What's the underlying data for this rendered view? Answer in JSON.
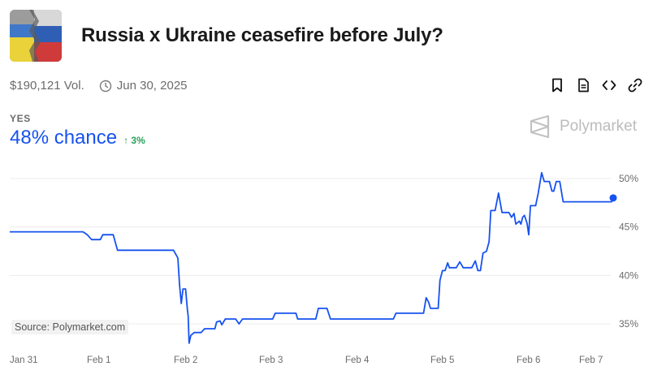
{
  "header": {
    "title": "Russia x Ukraine ceasefire before July?",
    "thumbnail_icon": "russia-ukraine-flag-image"
  },
  "meta": {
    "volume": "$190,121 Vol.",
    "end_date": "Jun 30, 2025"
  },
  "toolbar": {
    "icons": [
      "bookmark-icon",
      "document-icon",
      "embed-code-icon",
      "link-icon"
    ]
  },
  "outcome": {
    "label": "YES",
    "chance": "48% chance",
    "delta": "↑ 3%",
    "accent": "#1652f0",
    "delta_color": "#27a05a"
  },
  "brand": {
    "name": "Polymarket"
  },
  "source": "Source: Polymarket.com",
  "chart_data": {
    "type": "line",
    "x_ticks": [
      "Jan 31",
      "Feb 1",
      "Feb 2",
      "Feb 3",
      "Feb 4",
      "Feb 5",
      "Feb 6",
      "Feb 7"
    ],
    "y_ticks": [
      "50%",
      "45%",
      "40%",
      "35%"
    ],
    "y_tick_values": [
      50,
      45,
      40,
      35
    ],
    "ylim": [
      33,
      51
    ],
    "xlim": [
      0,
      7
    ],
    "grid": true,
    "line_color": "#1652f0",
    "series": [
      {
        "values": [
          [
            0.0,
            44.5
          ],
          [
            0.85,
            44.5
          ],
          [
            0.9,
            44.2
          ],
          [
            0.95,
            43.7
          ],
          [
            1.05,
            43.7
          ],
          [
            1.08,
            44.2
          ],
          [
            1.2,
            44.2
          ],
          [
            1.25,
            42.6
          ],
          [
            1.9,
            42.6
          ],
          [
            1.95,
            41.8
          ],
          [
            1.97,
            39.0
          ],
          [
            1.99,
            37.1
          ],
          [
            2.01,
            38.6
          ],
          [
            2.04,
            38.6
          ],
          [
            2.06,
            36.5
          ],
          [
            2.07,
            35.8
          ],
          [
            2.08,
            33.0
          ],
          [
            2.1,
            33.8
          ],
          [
            2.14,
            34.1
          ],
          [
            2.22,
            34.1
          ],
          [
            2.26,
            34.5
          ],
          [
            2.38,
            34.5
          ],
          [
            2.4,
            35.2
          ],
          [
            2.44,
            35.3
          ],
          [
            2.46,
            34.9
          ],
          [
            2.5,
            35.5
          ],
          [
            2.62,
            35.5
          ],
          [
            2.66,
            35.0
          ],
          [
            2.7,
            35.5
          ],
          [
            3.05,
            35.5
          ],
          [
            3.08,
            36.1
          ],
          [
            3.32,
            36.1
          ],
          [
            3.34,
            35.5
          ],
          [
            3.55,
            35.5
          ],
          [
            3.58,
            36.6
          ],
          [
            3.68,
            36.6
          ],
          [
            3.72,
            35.5
          ],
          [
            4.45,
            35.5
          ],
          [
            4.48,
            36.1
          ],
          [
            4.8,
            36.1
          ],
          [
            4.83,
            37.7
          ],
          [
            4.86,
            37.2
          ],
          [
            4.88,
            36.6
          ],
          [
            4.97,
            36.6
          ],
          [
            4.99,
            39.5
          ],
          [
            5.02,
            40.5
          ],
          [
            5.05,
            40.5
          ],
          [
            5.08,
            41.3
          ],
          [
            5.1,
            40.8
          ],
          [
            5.18,
            40.8
          ],
          [
            5.22,
            41.4
          ],
          [
            5.26,
            40.8
          ],
          [
            5.36,
            40.8
          ],
          [
            5.4,
            41.5
          ],
          [
            5.43,
            40.5
          ],
          [
            5.46,
            40.5
          ],
          [
            5.49,
            42.3
          ],
          [
            5.53,
            42.5
          ],
          [
            5.56,
            43.5
          ],
          [
            5.58,
            46.7
          ],
          [
            5.63,
            46.7
          ],
          [
            5.67,
            48.5
          ],
          [
            5.71,
            46.5
          ],
          [
            5.79,
            46.5
          ],
          [
            5.82,
            46.0
          ],
          [
            5.85,
            46.4
          ],
          [
            5.87,
            45.3
          ],
          [
            5.91,
            45.6
          ],
          [
            5.93,
            45.3
          ],
          [
            5.95,
            46.0
          ],
          [
            5.97,
            46.2
          ],
          [
            6.0,
            45.4
          ],
          [
            6.02,
            44.2
          ],
          [
            6.04,
            47.2
          ],
          [
            6.1,
            47.2
          ],
          [
            6.13,
            48.5
          ],
          [
            6.17,
            50.6
          ],
          [
            6.2,
            49.7
          ],
          [
            6.26,
            49.7
          ],
          [
            6.29,
            48.7
          ],
          [
            6.31,
            48.7
          ],
          [
            6.34,
            49.7
          ],
          [
            6.38,
            49.7
          ],
          [
            6.42,
            47.6
          ],
          [
            6.5,
            47.6
          ],
          [
            6.98,
            47.6
          ],
          [
            7.0,
            48.0
          ]
        ]
      }
    ]
  }
}
